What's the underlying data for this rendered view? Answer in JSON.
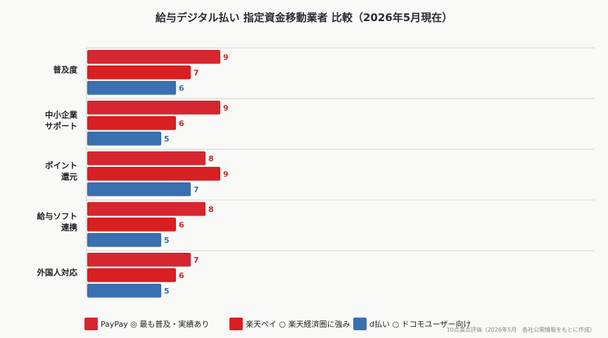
{
  "chart_data": {
    "type": "bar",
    "orientation": "horizontal",
    "title": "給与デジタル払い 指定資金移動業者 比較（2026年5月現在）",
    "categories": [
      [
        "普及度"
      ],
      [
        "中小企業",
        "サポート"
      ],
      [
        "ポイント",
        "還元"
      ],
      [
        "給与ソフト",
        "連携"
      ],
      [
        "外国人対応"
      ]
    ],
    "series": [
      {
        "name": "PayPay ◎ 最も普及・実績あり",
        "color": "#d6262f",
        "label_color": "#c62a30",
        "values": [
          9,
          9,
          8,
          8,
          7
        ]
      },
      {
        "name": "楽天ペイ ○ 楽天経済圏に強み",
        "color": "#d81f22",
        "label_color": "#c62a30",
        "values": [
          7,
          6,
          9,
          6,
          6
        ]
      },
      {
        "name": "d払い ○ ドコモユーザー向け",
        "color": "#3a6fb0",
        "label_color": "#3a6fb0",
        "values": [
          6,
          5,
          7,
          5,
          5
        ]
      }
    ],
    "xlim": [
      0,
      10
    ],
    "grid": true,
    "legend_position": "bottom"
  },
  "footnote": "10点満点評価（2026年5月　各社公開情報をもとに作成）"
}
